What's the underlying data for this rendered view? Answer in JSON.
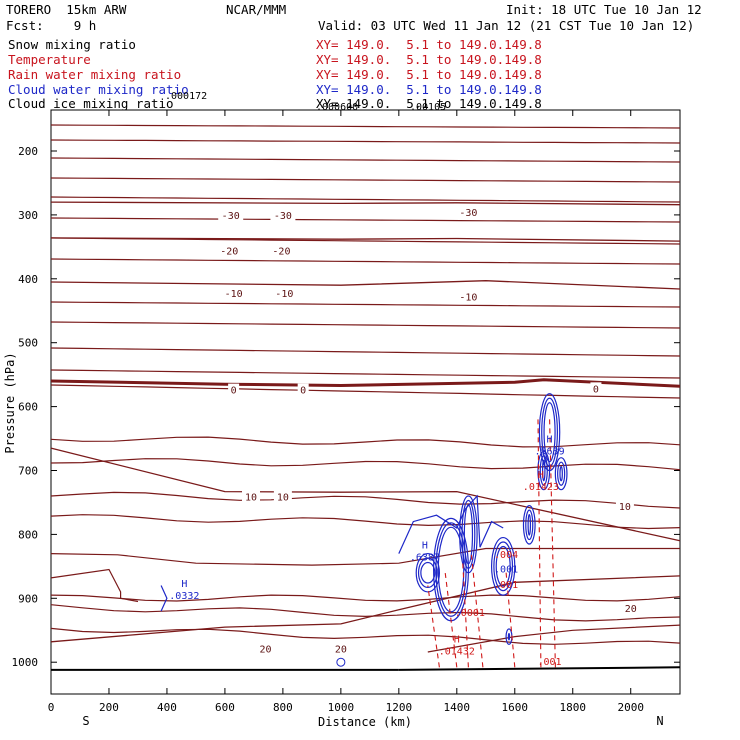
{
  "header": {
    "model": "TORERO  15km ARW",
    "center": "NCAR/MMM",
    "init": "Init: 18 UTC Tue 10 Jan 12",
    "fcst": "Fcst:    9 h",
    "valid": "Valid: 03 UTC Wed 11 Jan 12 (21 CST Tue 10 Jan 12)",
    "fields": [
      {
        "name": "Snow mixing ratio",
        "xy": "XY= 149.0.  5.1 to 149.0.149.8",
        "color": "#000000"
      },
      {
        "name": "Temperature",
        "xy": "XY= 149.0.  5.1 to 149.0.149.8",
        "color": "#c8141e"
      },
      {
        "name": "Rain water mixing ratio",
        "xy": "XY= 149.0.  5.1 to 149.0.149.8",
        "color": "#c8141e"
      },
      {
        "name": "Cloud water mixing ratio",
        "xy": "XY= 149.0.  5.1 to 149.0.149.8",
        "color": "#1e28c8"
      },
      {
        "name": "Cloud ice mixing ratio",
        "xy": "XY= 149.0.  5.1 to 149.0.149.8",
        "color": "#000000"
      }
    ],
    "overprint": [
      ".000172",
      ".000600",
      ".00105"
    ]
  },
  "chart_data": {
    "type": "line",
    "subtype": "vertical cross-section contour plot",
    "xlabel": "Distance (km)",
    "ylabel": "Pressure (hPa)",
    "xlim": [
      0,
      2170
    ],
    "ylim": [
      1050,
      100
    ],
    "x_ticks": [
      "0",
      "200",
      "400",
      "600",
      "800",
      "1000",
      "1200",
      "1400",
      "1600",
      "1800",
      "2000"
    ],
    "y_ticks": [
      "200",
      "300",
      "400",
      "500",
      "600",
      "700",
      "800",
      "900",
      "1000"
    ],
    "x_end_labels": {
      "left": "S",
      "right": "N"
    },
    "colors": {
      "temperature": "#7a1a1a",
      "rain": "#d01818",
      "cloud_water": "#1e28c8",
      "terrain": "#000000"
    },
    "temperature_isotherms": [
      {
        "label": "-30",
        "values_x": [
          0,
          1000,
          1400,
          2170
        ],
        "values_p": [
          280,
          282,
          281,
          284
        ]
      },
      {
        "label": "-20",
        "values_x": [
          0,
          1000,
          1400,
          2170
        ],
        "values_p": [
          336,
          338,
          337,
          341
        ]
      },
      {
        "label": "-10",
        "values_x": [
          0,
          1000,
          1500,
          2170
        ],
        "values_p": [
          405,
          410,
          403,
          416
        ]
      },
      {
        "label": "0",
        "values_x": [
          0,
          600,
          1000,
          1600,
          1700,
          2170
        ],
        "values_p": [
          560,
          565,
          567,
          562,
          558,
          568
        ]
      },
      {
        "label": "10",
        "values_x": [
          0,
          600,
          1000,
          1400,
          2170
        ],
        "values_p": [
          665,
          733,
          734,
          733,
          810
        ]
      },
      {
        "label": "20",
        "values_x": [
          0,
          600,
          1000,
          1200,
          1600,
          2170
        ],
        "values_p": [
          968,
          945,
          940,
          918,
          875,
          865
        ]
      }
    ],
    "contour_labels": [
      {
        "text": "-30",
        "x": 620,
        "p": 302,
        "series": "temperature"
      },
      {
        "text": "-30",
        "x": 800,
        "p": 302,
        "series": "temperature"
      },
      {
        "text": "-30",
        "x": 1440,
        "p": 297,
        "series": "temperature"
      },
      {
        "text": "-20",
        "x": 615,
        "p": 357,
        "series": "temperature"
      },
      {
        "text": "-20",
        "x": 795,
        "p": 357,
        "series": "temperature"
      },
      {
        "text": "-10",
        "x": 630,
        "p": 424,
        "series": "temperature"
      },
      {
        "text": "-10",
        "x": 805,
        "p": 424,
        "series": "temperature"
      },
      {
        "text": "-10",
        "x": 1440,
        "p": 429,
        "series": "temperature"
      },
      {
        "text": "0",
        "x": 630,
        "p": 575,
        "series": "temperature"
      },
      {
        "text": "0",
        "x": 870,
        "p": 575,
        "series": "temperature"
      },
      {
        "text": "0",
        "x": 1880,
        "p": 573,
        "series": "temperature"
      },
      {
        "text": "10",
        "x": 690,
        "p": 742,
        "series": "temperature"
      },
      {
        "text": "10",
        "x": 800,
        "p": 742,
        "series": "temperature"
      },
      {
        "text": "10",
        "x": 1980,
        "p": 757,
        "series": "temperature"
      },
      {
        "text": "20",
        "x": 740,
        "p": 980,
        "series": "temperature"
      },
      {
        "text": "20",
        "x": 1000,
        "p": 980,
        "series": "temperature"
      },
      {
        "text": "20",
        "x": 2000,
        "p": 917,
        "series": "temperature"
      }
    ],
    "extrema": [
      {
        "mark": "H",
        "value": ".0332",
        "x": 460,
        "p": 898,
        "series": "cloud_water"
      },
      {
        "mark": "H",
        "value": ".6387",
        "x": 1290,
        "p": 838,
        "series": "cloud_water"
      },
      {
        "mark": "H",
        "value": ".5639",
        "x": 1720,
        "p": 672,
        "series": "cloud_water"
      },
      {
        "mark": "H",
        "value": ".01423",
        "x": 1690,
        "p": 727,
        "series": "rain"
      },
      {
        "mark": "H",
        "value": ".01432",
        "x": 1400,
        "p": 985,
        "series": "rain"
      }
    ],
    "misc_labels": [
      {
        "text": ".004",
        "x": 1570,
        "p": 837,
        "series": "rain"
      },
      {
        "text": ".001",
        "x": 1570,
        "p": 860,
        "series": "cloud_water"
      },
      {
        "text": ".001",
        "x": 1570,
        "p": 884,
        "series": "rain"
      },
      {
        "text": ".0001",
        "x": 1445,
        "p": 928,
        "series": "rain"
      },
      {
        "text": ".001",
        "x": 1720,
        "p": 1004,
        "series": "rain"
      }
    ]
  }
}
